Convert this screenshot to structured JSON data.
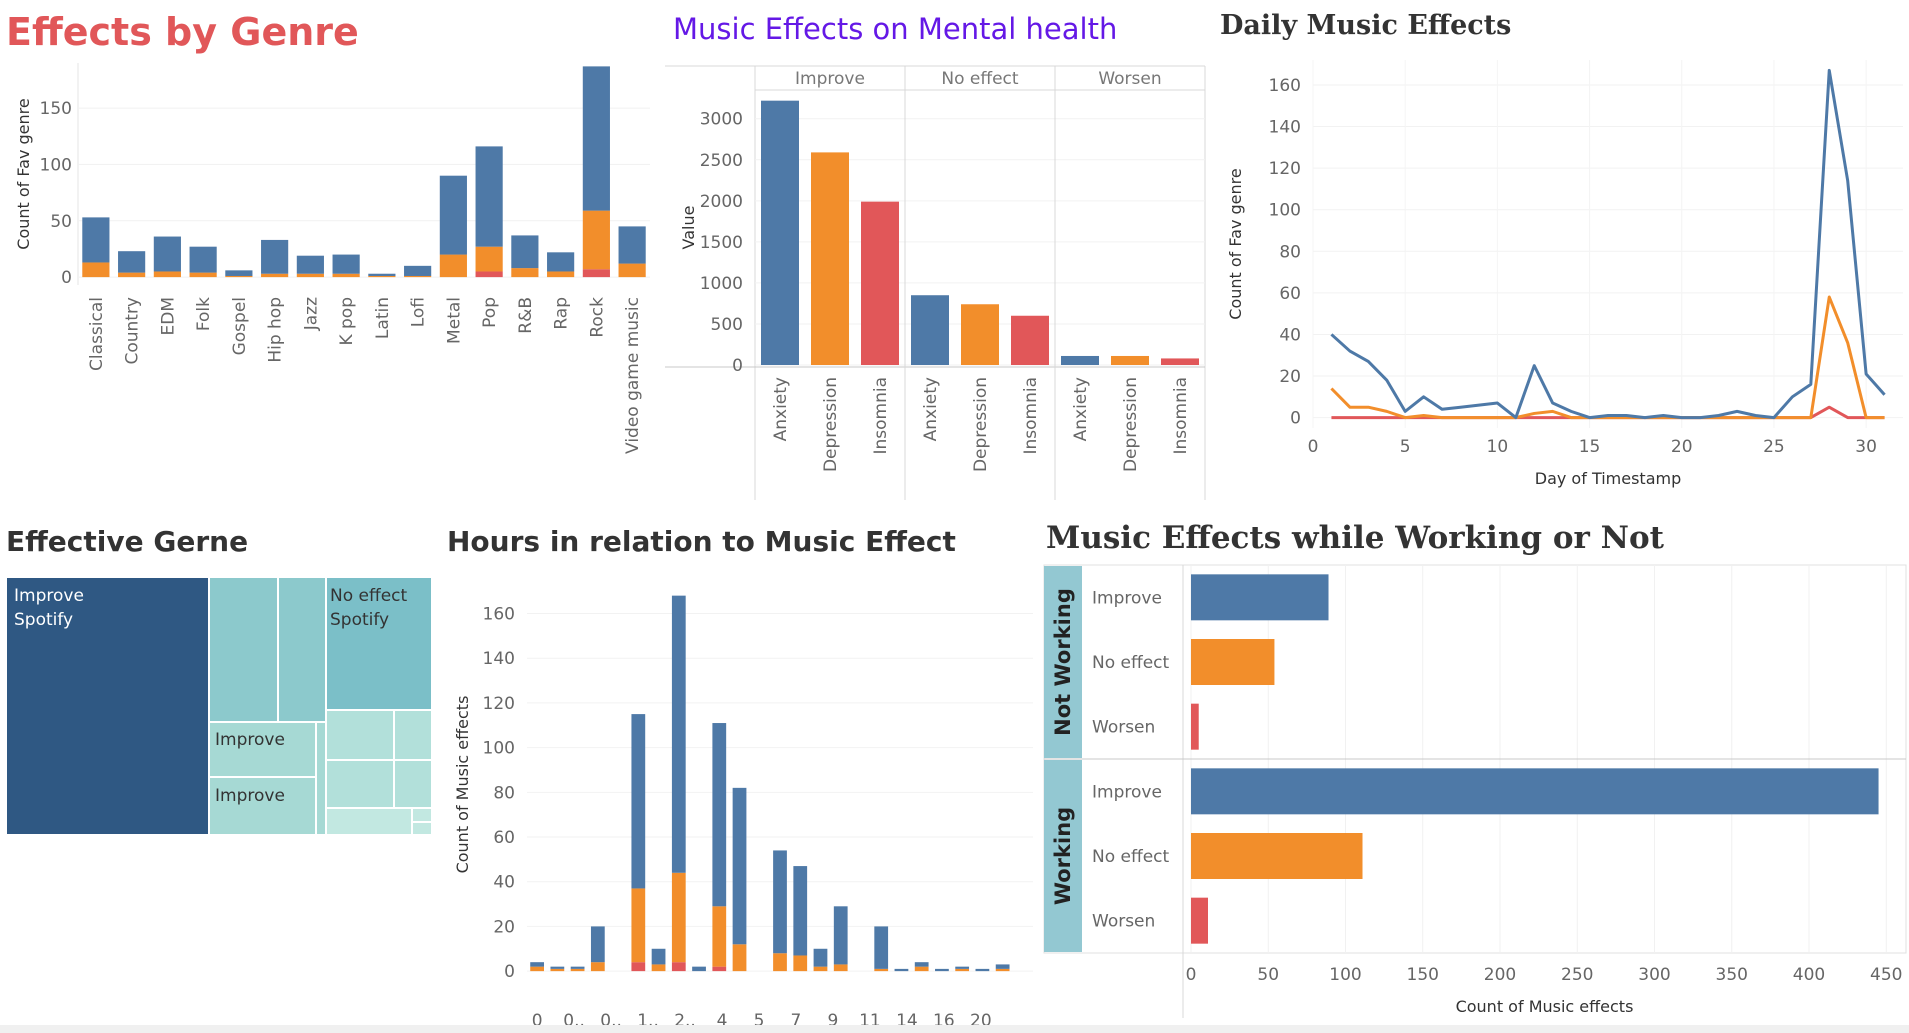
{
  "colors": {
    "improve": "#4e79a7",
    "no_effect": "#f28e2b",
    "worsen": "#e15759"
  },
  "panels": {
    "genre": {
      "title": "Effects by Genre",
      "chart_data": {
        "type": "bar",
        "stacked": true,
        "categories": [
          "Classical",
          "Country",
          "EDM",
          "Folk",
          "Gospel",
          "Hip hop",
          "Jazz",
          "K pop",
          "Latin",
          "Lofi",
          "Metal",
          "Pop",
          "R&B",
          "Rap",
          "Rock",
          "Video game music"
        ],
        "series": [
          {
            "name": "Improve",
            "values": [
              40,
              19,
              31,
              23,
              5,
              30,
              16,
              17,
              2,
              9,
              70,
              89,
              29,
              17,
              128,
              33
            ]
          },
          {
            "name": "No effect",
            "values": [
              13,
              4,
              5,
              4,
              1,
              3,
              3,
              3,
              1,
              1,
              20,
              22,
              8,
              5,
              52,
              12
            ]
          },
          {
            "name": "Worsen",
            "values": [
              0,
              0,
              0,
              0,
              0,
              0,
              0,
              0,
              0,
              0,
              0,
              5,
              0,
              0,
              7,
              0
            ]
          }
        ],
        "xlabel": "",
        "ylabel": "Count of Fav genre",
        "yticks": [
          0,
          50,
          100,
          150
        ],
        "ylim": [
          0,
          190
        ]
      }
    },
    "mental": {
      "title": "Music Effects on Mental health",
      "chart_data": {
        "type": "bar",
        "groups": [
          "Improve",
          "No effect",
          "Worsen"
        ],
        "categories": [
          "Anxiety",
          "Depression",
          "Insomnia"
        ],
        "values": [
          [
            3220,
            2590,
            1990
          ],
          [
            850,
            740,
            600
          ],
          [
            110,
            110,
            80
          ]
        ],
        "ylabel": "Value",
        "yticks": [
          0,
          500,
          1000,
          1500,
          2000,
          2500,
          3000
        ],
        "ylim": [
          0,
          3350
        ]
      }
    },
    "daily": {
      "title": "Daily Music Effects",
      "chart_data": {
        "type": "line",
        "x": [
          1,
          2,
          3,
          4,
          5,
          6,
          7,
          8,
          9,
          10,
          11,
          12,
          13,
          14,
          15,
          16,
          17,
          18,
          19,
          20,
          21,
          22,
          23,
          24,
          25,
          26,
          27,
          28,
          29,
          30,
          31
        ],
        "series": [
          {
            "name": "Improve",
            "values": [
              40,
              32,
              27,
              18,
              3,
              10,
              4,
              5,
              6,
              7,
              0,
              25,
              7,
              3,
              0,
              1,
              1,
              0,
              1,
              0,
              0,
              1,
              3,
              1,
              0,
              10,
              16,
              167,
              114,
              21,
              11
            ]
          },
          {
            "name": "No effect",
            "values": [
              14,
              5,
              5,
              3,
              0,
              1,
              0,
              0,
              0,
              0,
              0,
              2,
              3,
              0,
              0,
              0,
              0,
              0,
              0,
              0,
              0,
              0,
              0,
              0,
              0,
              0,
              0,
              58,
              36,
              0,
              0
            ]
          },
          {
            "name": "Worsen",
            "values": [
              0,
              0,
              0,
              0,
              0,
              0,
              0,
              0,
              0,
              0,
              0,
              0,
              0,
              0,
              0,
              0,
              0,
              0,
              0,
              0,
              0,
              0,
              0,
              0,
              0,
              0,
              0,
              5,
              0,
              0,
              0
            ]
          }
        ],
        "xlabel": "Day of Timestamp",
        "ylabel": "Count of Fav genre",
        "xticks": [
          0,
          5,
          10,
          15,
          20,
          25,
          30
        ],
        "yticks": [
          0,
          20,
          40,
          60,
          80,
          100,
          120,
          140,
          160
        ],
        "xlim": [
          0,
          32
        ],
        "ylim": [
          -5,
          172
        ]
      }
    },
    "treemap": {
      "title": "Effective Gerne",
      "labels": [
        {
          "line1": "Improve",
          "line2": "Spotify"
        },
        {
          "line1": "No effect",
          "line2": "Spotify"
        },
        {
          "line1": "Improve",
          "line2": ""
        },
        {
          "line1": "Improve",
          "line2": ""
        }
      ]
    },
    "hours": {
      "title": "Hours in relation to Music Effect",
      "chart_data": {
        "type": "bar",
        "stacked": true,
        "tick_labels": [
          "0",
          "0..",
          "0..",
          "1..",
          "2..",
          "4",
          "5",
          "7",
          "9",
          "11",
          "14",
          "16",
          "20"
        ],
        "series": [
          {
            "name": "Improve",
            "values": [
              2,
              1,
              1,
              16,
              0,
              78,
              7,
              124,
              2,
              82,
              70,
              0,
              46,
              40,
              8,
              26,
              0,
              19,
              1,
              2,
              1,
              1,
              1,
              2
            ]
          },
          {
            "name": "No effect",
            "values": [
              2,
              1,
              1,
              4,
              0,
              33,
              3,
              40,
              0,
              27,
              12,
              0,
              8,
              7,
              2,
              3,
              0,
              1,
              0,
              2,
              0,
              1,
              0,
              1
            ]
          },
          {
            "name": "Worsen",
            "values": [
              0,
              0,
              0,
              0,
              0,
              4,
              0,
              4,
              0,
              2,
              0,
              0,
              0,
              0,
              0,
              0,
              0,
              0,
              0,
              0,
              0,
              0,
              0,
              0
            ]
          }
        ],
        "ylabel": "Count of Music effects",
        "yticks": [
          0,
          20,
          40,
          60,
          80,
          100,
          120,
          140,
          160
        ],
        "ylim": [
          0,
          175
        ]
      }
    },
    "working": {
      "title": "Music Effects while Working or Not",
      "chart_data": {
        "type": "bar",
        "orientation": "horizontal",
        "groups": [
          {
            "name": "Not Working",
            "categories": [
              "Improve",
              "No effect",
              "Worsen"
            ],
            "values": [
              89,
              54,
              5
            ]
          },
          {
            "name": "Working",
            "categories": [
              "Improve",
              "No effect",
              "Worsen"
            ],
            "values": [
              445,
              111,
              11
            ]
          }
        ],
        "xlabel": "Count of Music effects",
        "xticks": [
          0,
          50,
          100,
          150,
          200,
          250,
          300,
          350,
          400,
          450
        ],
        "xlim": [
          0,
          455
        ]
      }
    }
  }
}
